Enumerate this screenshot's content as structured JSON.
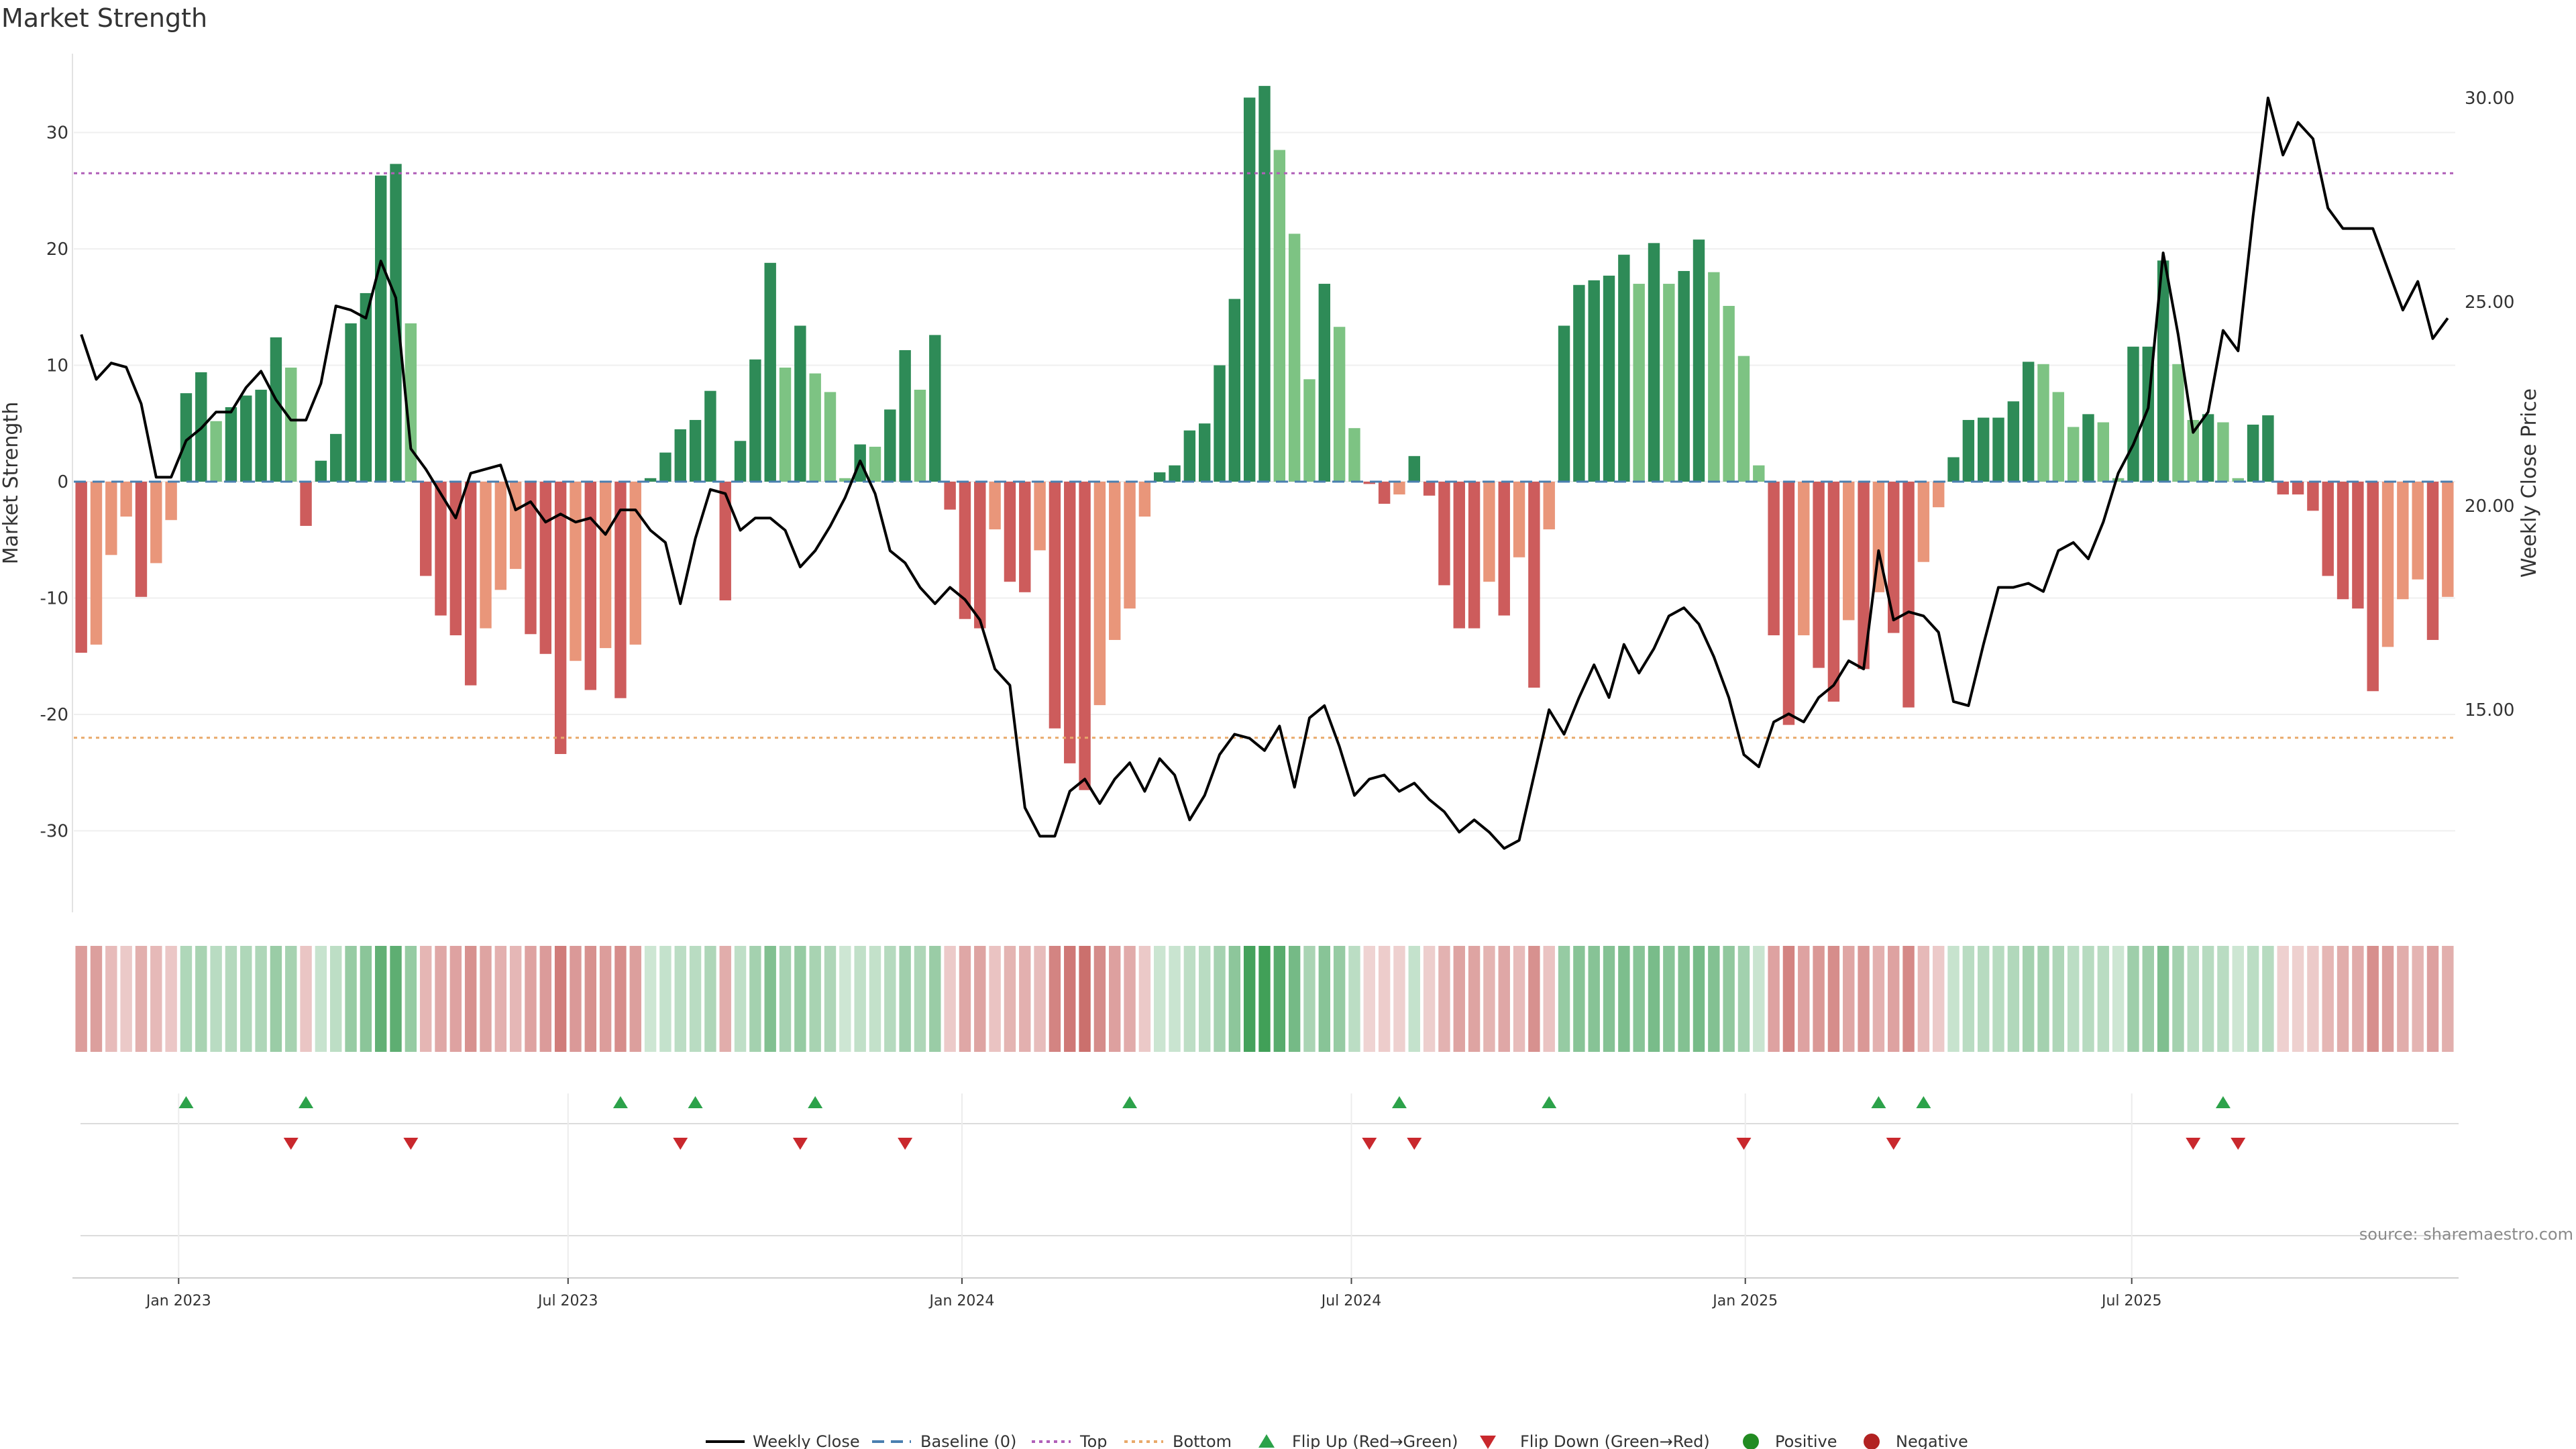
{
  "chart_data": {
    "type": "bar",
    "title": "Market Strength",
    "ylabel_left": "Market Strength",
    "ylabel_right": "Weekly Close Price",
    "ylim_left": [
      -37,
      37
    ],
    "yticks_left": [
      -30,
      -20,
      -10,
      0,
      10,
      20,
      30
    ],
    "ylim_right": [
      10.4,
      31.5
    ],
    "yticks_right": [
      "15.00",
      "20.00",
      "25.00",
      "30.00"
    ],
    "x_tick_labels": [
      "Jan 2023",
      "Jul 2023",
      "Jan 2024",
      "Jul 2024",
      "Jan 2025",
      "Jul 2025"
    ],
    "x_tick_week_index": [
      7,
      33,
      59.3,
      85.3,
      111.6,
      137.4
    ],
    "top_threshold": 26.5,
    "bottom_threshold": -22,
    "strength": [
      -14.7,
      -14,
      -6.3,
      -3,
      -9.9,
      -7,
      -3.3,
      7.6,
      9.4,
      5.2,
      6.4,
      7.4,
      7.9,
      12.4,
      9.8,
      -3.8,
      1.8,
      4.1,
      13.6,
      16.2,
      26.3,
      27.3,
      13.6,
      -8.1,
      -11.5,
      -13.2,
      -17.5,
      -12.6,
      -9.3,
      -7.5,
      -13.1,
      -14.8,
      -23.4,
      -15.4,
      -17.9,
      -14.3,
      -18.6,
      -14,
      0.3,
      2.5,
      4.5,
      5.3,
      7.8,
      -10.2,
      3.5,
      10.5,
      18.8,
      9.8,
      13.4,
      9.3,
      7.7,
      0.3,
      3.2,
      3,
      6.2,
      11.3,
      7.9,
      12.6,
      -2.4,
      -11.8,
      -12.6,
      -4.1,
      -8.6,
      -9.5,
      -5.9,
      -21.2,
      -24.2,
      -26.5,
      -19.2,
      -13.6,
      -10.9,
      -3,
      0.8,
      1.4,
      4.4,
      5,
      10,
      15.7,
      33,
      34,
      28.5,
      21.3,
      8.8,
      17,
      13.3,
      4.6,
      -0.2,
      -1.9,
      -1.1,
      2.2,
      -1.2,
      -8.9,
      -12.6,
      -12.6,
      -8.6,
      -11.5,
      -6.5,
      -17.7,
      -4.1,
      13.4,
      16.9,
      17.3,
      17.7,
      19.5,
      17,
      20.5,
      17,
      18.1,
      20.8,
      18,
      15.1,
      10.8,
      1.4,
      -13.2,
      -20.9,
      -13.2,
      -16,
      -18.9,
      -11.9,
      -16.1,
      -9.5,
      -13,
      -19.4,
      -6.9,
      -2.2,
      2.1,
      5.3,
      5.5,
      5.5,
      6.9,
      10.3,
      10.1,
      7.7,
      4.7,
      5.8,
      5.1,
      0.3,
      11.6,
      11.6,
      19,
      10.1,
      5.3,
      5.8,
      5.1,
      0.3,
      4.9,
      5.7,
      -1.1,
      -1.1,
      -2.5,
      -8.1,
      -10.1,
      -10.9,
      -18,
      -14.2,
      -10.1,
      -8.4,
      -13.6,
      -9.9
    ],
    "weekly_close": [
      24.2,
      23.1,
      23.5,
      23.4,
      22.5,
      20.7,
      20.7,
      21.6,
      21.9,
      22.3,
      22.3,
      22.9,
      23.3,
      22.6,
      22.1,
      22.1,
      23,
      24.9,
      24.8,
      24.6,
      26,
      25.1,
      21.4,
      20.9,
      20.3,
      19.7,
      20.8,
      20.9,
      21,
      19.9,
      20.1,
      19.6,
      19.8,
      19.6,
      19.7,
      19.3,
      19.9,
      19.9,
      19.4,
      19.1,
      17.6,
      19.2,
      20.4,
      20.3,
      19.4,
      19.7,
      19.7,
      19.4,
      18.5,
      18.9,
      19.5,
      20.2,
      21.1,
      20.3,
      18.9,
      18.6,
      18,
      17.6,
      18,
      17.7,
      17.2,
      16,
      15.6,
      12.6,
      11.9,
      11.9,
      13,
      13.3,
      12.7,
      13.3,
      13.7,
      13,
      13.8,
      13.4,
      12.3,
      12.9,
      13.9,
      14.4,
      14.3,
      14,
      14.6,
      13.1,
      14.8,
      15.1,
      14.1,
      12.9,
      13.3,
      13.4,
      13,
      13.2,
      12.8,
      12.5,
      12,
      12.3,
      12,
      11.6,
      11.8,
      13.4,
      15,
      14.4,
      15.3,
      16.1,
      15.3,
      16.6,
      15.9,
      16.5,
      17.3,
      17.5,
      17.1,
      16.3,
      15.3,
      13.9,
      13.6,
      14.7,
      14.9,
      14.7,
      15.3,
      15.6,
      16.2,
      16,
      18.9,
      17.2,
      17.4,
      17.3,
      16.9,
      15.2,
      15.1,
      16.6,
      18,
      18,
      18.1,
      17.9,
      18.9,
      19.1,
      18.7,
      19.6,
      20.8,
      21.5,
      22.4,
      26.2,
      24.2,
      21.8,
      22.3,
      24.3,
      23.8,
      27.1,
      30,
      28.6,
      29.4,
      29,
      27.3,
      26.8,
      26.8,
      26.8,
      25.8,
      24.8,
      25.5,
      24.1,
      24.6
    ],
    "flip_up_weeks": [
      7,
      15,
      36,
      41,
      49,
      70,
      88,
      98,
      120,
      123,
      143
    ],
    "flip_down_weeks": [
      14,
      22,
      40,
      48,
      55,
      86,
      89,
      111,
      121,
      141,
      144
    ],
    "legend": {
      "weekly_close": "Weekly Close",
      "baseline": "Baseline (0)",
      "top": "Top",
      "bottom": "Bottom",
      "flip_up": "Flip Up (Red→Green)",
      "flip_down": "Flip Down (Green→Red)",
      "positive": "Positive",
      "negative": "Negative"
    },
    "legend_placement": "bottom-center",
    "grid": true,
    "source": "source: sharemaestro.com"
  },
  "colors": {
    "pos_strong": "#2e8b57",
    "pos_weak": "#7dc383",
    "neg_strong": "#cd5c5c",
    "neg_weak": "#e9967a",
    "line": "#000000",
    "top_line": "#b05fb8",
    "bottom_line": "#e8a96a",
    "baseline": "#4a7fb0",
    "flip_up": "#2ca24a",
    "flip_down": "#c9282d",
    "positive_dot": "#228b22",
    "negative_dot": "#b22222"
  }
}
